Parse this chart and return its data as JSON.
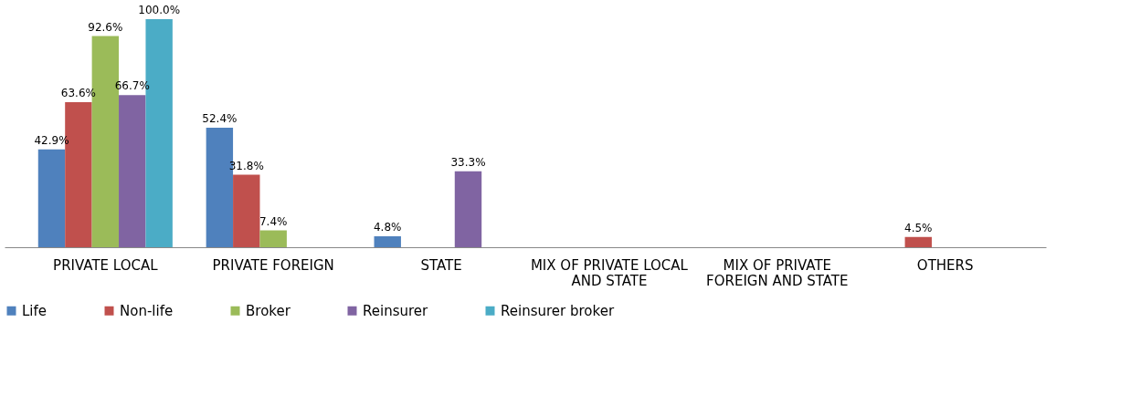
{
  "chart_data": {
    "type": "bar",
    "categories": [
      "PRIVATE LOCAL",
      "PRIVATE FOREIGN",
      "STATE",
      "MIX OF PRIVATE LOCAL AND STATE",
      "MIX OF PRIVATE FOREIGN AND STATE",
      "OTHERS"
    ],
    "series": [
      {
        "name": "Life",
        "color": "#4f81bd",
        "values": [
          42.9,
          52.4,
          4.8,
          null,
          null,
          null
        ],
        "value_labels": [
          "42.9%",
          "52.4%",
          "4.8%",
          null,
          null,
          null
        ]
      },
      {
        "name": "Non-life",
        "color": "#c0504d",
        "values": [
          63.6,
          31.8,
          null,
          null,
          null,
          4.5
        ],
        "value_labels": [
          "63.6%",
          "31.8%",
          null,
          null,
          null,
          "4.5%"
        ]
      },
      {
        "name": "Broker",
        "color": "#9bbb59",
        "values": [
          92.6,
          7.4,
          null,
          null,
          null,
          null
        ],
        "value_labels": [
          "92.6%",
          "7.4%",
          null,
          null,
          null,
          null
        ]
      },
      {
        "name": "Reinsurer",
        "color": "#8064a2",
        "values": [
          66.7,
          null,
          33.3,
          null,
          null,
          null
        ],
        "value_labels": [
          "66.7%",
          null,
          "33.3%",
          null,
          null,
          null
        ]
      },
      {
        "name": "Reinsurer broker",
        "color": "#4bacc6",
        "values": [
          100.0,
          null,
          null,
          null,
          null,
          null
        ],
        "value_labels": [
          "100.0%",
          null,
          null,
          null,
          null,
          null
        ]
      }
    ],
    "legend": "bottom",
    "grid": false
  }
}
